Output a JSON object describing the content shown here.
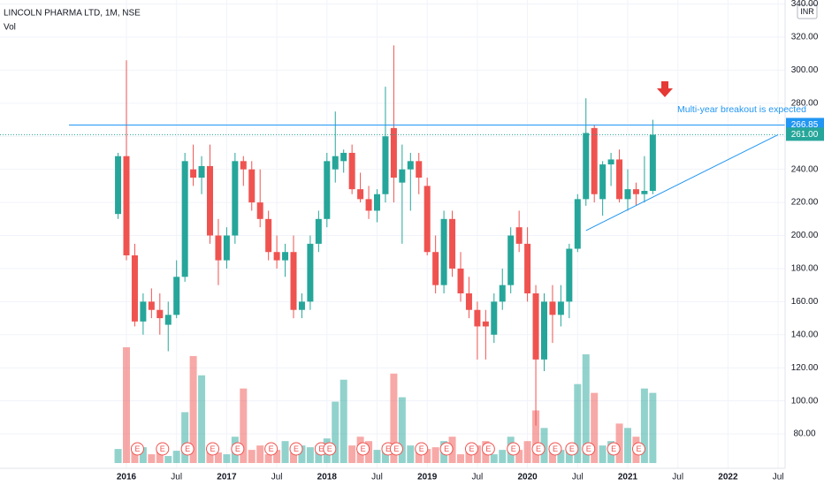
{
  "header": {
    "title": "LINCOLN PHARMA LTD, 1M, NSE",
    "volume_label": "Vol",
    "currency": "INR"
  },
  "chart_data": {
    "type": "candlestick",
    "x": [
      "2015-12",
      "2016-01",
      "2016-02",
      "2016-03",
      "2016-04",
      "2016-05",
      "2016-06",
      "2016-07",
      "2016-08",
      "2016-09",
      "2016-10",
      "2016-11",
      "2016-12",
      "2017-01",
      "2017-02",
      "2017-03",
      "2017-04",
      "2017-05",
      "2017-06",
      "2017-07",
      "2017-08",
      "2017-09",
      "2017-10",
      "2017-11",
      "2017-12",
      "2018-01",
      "2018-02",
      "2018-03",
      "2018-04",
      "2018-05",
      "2018-06",
      "2018-07",
      "2018-08",
      "2018-09",
      "2018-10",
      "2018-11",
      "2018-12",
      "2019-01",
      "2019-02",
      "2019-03",
      "2019-04",
      "2019-05",
      "2019-06",
      "2019-07",
      "2019-08",
      "2019-09",
      "2019-10",
      "2019-11",
      "2019-12",
      "2020-01",
      "2020-02",
      "2020-03",
      "2020-04",
      "2020-05",
      "2020-06",
      "2020-07",
      "2020-08",
      "2020-09",
      "2020-10",
      "2020-11",
      "2020-12",
      "2021-01",
      "2021-02",
      "2021-03",
      "2021-04"
    ],
    "open": [
      213,
      248,
      188,
      148,
      160,
      155,
      146,
      152,
      175,
      240,
      235,
      242,
      200,
      185,
      200,
      245,
      240,
      220,
      210,
      190,
      185,
      190,
      155,
      160,
      195,
      210,
      240,
      245,
      250,
      228,
      222,
      215,
      225,
      265,
      232,
      240,
      245,
      230,
      190,
      170,
      210,
      180,
      165,
      155,
      148,
      140,
      160,
      170,
      205,
      195,
      165,
      125,
      160,
      152,
      160,
      192,
      222,
      265,
      222,
      243,
      246,
      222,
      228,
      225,
      227
    ],
    "high": [
      250,
      306,
      195,
      165,
      168,
      165,
      160,
      185,
      250,
      255,
      248,
      255,
      210,
      205,
      250,
      248,
      245,
      240,
      215,
      200,
      195,
      200,
      165,
      200,
      215,
      250,
      275,
      252,
      255,
      238,
      230,
      228,
      290,
      315,
      255,
      250,
      250,
      235,
      200,
      215,
      215,
      190,
      175,
      160,
      155,
      165,
      180,
      205,
      215,
      205,
      170,
      165,
      170,
      170,
      195,
      225,
      283,
      267,
      245,
      250,
      252,
      240,
      232,
      248,
      270
    ],
    "low": [
      210,
      185,
      145,
      140,
      150,
      140,
      130,
      150,
      172,
      230,
      225,
      195,
      170,
      180,
      195,
      230,
      215,
      205,
      185,
      180,
      175,
      150,
      150,
      155,
      190,
      205,
      232,
      238,
      225,
      220,
      210,
      208,
      220,
      220,
      195,
      215,
      225,
      188,
      165,
      165,
      175,
      160,
      150,
      125,
      125,
      135,
      155,
      165,
      190,
      160,
      85,
      118,
      135,
      145,
      150,
      190,
      218,
      220,
      212,
      230,
      220,
      215,
      218,
      220,
      225
    ],
    "close": [
      248,
      188,
      148,
      160,
      155,
      150,
      152,
      175,
      245,
      235,
      242,
      200,
      185,
      200,
      245,
      240,
      220,
      210,
      190,
      185,
      190,
      155,
      160,
      195,
      210,
      245,
      248,
      250,
      228,
      222,
      215,
      225,
      260,
      235,
      240,
      245,
      235,
      190,
      170,
      210,
      180,
      165,
      155,
      145,
      145,
      160,
      170,
      200,
      195,
      165,
      125,
      160,
      152,
      160,
      192,
      222,
      262,
      225,
      243,
      246,
      222,
      228,
      225,
      227,
      261
    ],
    "volume": [
      16,
      132,
      20,
      18,
      10,
      15,
      8,
      14,
      58,
      122,
      100,
      16,
      12,
      10,
      30,
      85,
      15,
      20,
      10,
      15,
      25,
      12,
      20,
      18,
      20,
      28,
      70,
      95,
      20,
      30,
      25,
      15,
      20,
      102,
      75,
      20,
      15,
      16,
      18,
      25,
      30,
      10,
      15,
      20,
      25,
      10,
      15,
      30,
      15,
      25,
      60,
      40,
      20,
      15,
      20,
      90,
      124,
      80,
      20,
      25,
      45,
      40,
      30,
      85,
      80
    ],
    "up_color": "#26a69a",
    "down_color": "#ef5350",
    "ylim": [
      66,
      345
    ],
    "yticks": [
      {
        "value": 80,
        "label": "80.00"
      },
      {
        "value": 100,
        "label": "100.00"
      },
      {
        "value": 120,
        "label": "120.00"
      },
      {
        "value": 140,
        "label": "140.00"
      },
      {
        "value": 160,
        "label": "160.00"
      },
      {
        "value": 180,
        "label": "180.00"
      },
      {
        "value": 200,
        "label": "200.00"
      },
      {
        "value": 220,
        "label": "220.00"
      },
      {
        "value": 240,
        "label": "240.00"
      },
      {
        "value": 260,
        "label": "260.00"
      },
      {
        "value": 280,
        "label": "280.00"
      },
      {
        "value": 300,
        "label": "300.00"
      },
      {
        "value": 320,
        "label": "320.00"
      },
      {
        "value": 340,
        "label": "340.00"
      }
    ],
    "xticks": [
      {
        "value": "2016-01",
        "label": "2016"
      },
      {
        "value": "2016-07",
        "label": "Jul"
      },
      {
        "value": "2017-01",
        "label": "2017"
      },
      {
        "value": "2017-07",
        "label": "Jul"
      },
      {
        "value": "2018-01",
        "label": "2018"
      },
      {
        "value": "2018-07",
        "label": "Jul"
      },
      {
        "value": "2019-01",
        "label": "2019"
      },
      {
        "value": "2019-07",
        "label": "Jul"
      },
      {
        "value": "2020-01",
        "label": "2020"
      },
      {
        "value": "2020-07",
        "label": "Jul"
      },
      {
        "value": "2021-01",
        "label": "2021"
      },
      {
        "value": "2021-07",
        "label": "Jul"
      },
      {
        "value": "2022-01",
        "label": "2022"
      },
      {
        "value": "2022-07",
        "label": "Jul"
      }
    ],
    "grid": true,
    "earnings": {
      "label": "E",
      "x": [
        "2016-02",
        "2016-05",
        "2016-08",
        "2016-11",
        "2017-02",
        "2017-06",
        "2017-09",
        "2017-12",
        "2018-01",
        "2018-05",
        "2018-08",
        "2018-09",
        "2018-12",
        "2019-03",
        "2019-06",
        "2019-08",
        "2019-11",
        "2020-02",
        "2020-04",
        "2020-06",
        "2020-08",
        "2020-11",
        "2021-02"
      ]
    },
    "resistance": {
      "value": 266.85,
      "label": "266.85",
      "color": "#2196f3"
    },
    "last_price": {
      "value": 261,
      "label": "261.00",
      "color": "#26a69a"
    },
    "trendline": {
      "from": [
        "2020-08",
        203
      ],
      "to": [
        "2022-07",
        261
      ],
      "color": "#2196f3"
    },
    "annotation": "Multi-year breakout is expected"
  }
}
